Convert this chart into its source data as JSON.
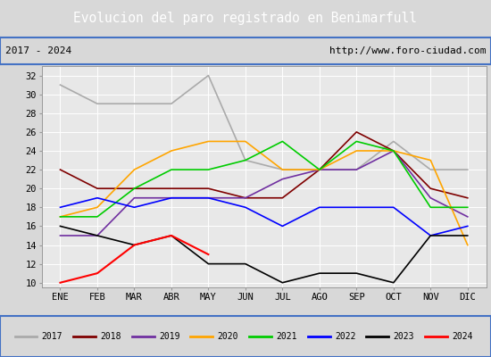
{
  "title": "Evolucion del paro registrado en Benimarfull",
  "title_bg": "#4d8fc4",
  "subtitle_left": "2017 - 2024",
  "subtitle_right": "http://www.foro-ciudad.com",
  "months": [
    "ENE",
    "FEB",
    "MAR",
    "ABR",
    "MAY",
    "JUN",
    "JUL",
    "AGO",
    "SEP",
    "OCT",
    "NOV",
    "DIC"
  ],
  "ylim": [
    9.5,
    33
  ],
  "yticks": [
    10,
    12,
    14,
    16,
    18,
    20,
    22,
    24,
    26,
    28,
    30,
    32
  ],
  "series": [
    {
      "year": "2017",
      "color": "#aaaaaa",
      "linewidth": 1.2,
      "data": [
        31,
        29,
        29,
        29,
        32,
        23,
        22,
        22,
        22,
        25,
        22,
        22
      ]
    },
    {
      "year": "2018",
      "color": "#7f0000",
      "linewidth": 1.2,
      "data": [
        22,
        20,
        20,
        20,
        20,
        19,
        19,
        22,
        26,
        24,
        20,
        19
      ]
    },
    {
      "year": "2019",
      "color": "#7030a0",
      "linewidth": 1.2,
      "data": [
        15,
        15,
        19,
        19,
        19,
        19,
        21,
        22,
        22,
        24,
        19,
        17
      ]
    },
    {
      "year": "2020",
      "color": "#ffa500",
      "linewidth": 1.2,
      "data": [
        17,
        18,
        22,
        24,
        25,
        25,
        22,
        22,
        24,
        24,
        23,
        14
      ]
    },
    {
      "year": "2021",
      "color": "#00cc00",
      "linewidth": 1.2,
      "data": [
        17,
        17,
        20,
        22,
        22,
        23,
        25,
        22,
        25,
        24,
        18,
        18
      ]
    },
    {
      "year": "2022",
      "color": "#0000ff",
      "linewidth": 1.2,
      "data": [
        18,
        19,
        18,
        19,
        19,
        18,
        16,
        18,
        18,
        18,
        15,
        16
      ]
    },
    {
      "year": "2023",
      "color": "#000000",
      "linewidth": 1.2,
      "data": [
        16,
        15,
        14,
        15,
        12,
        12,
        10,
        11,
        11,
        10,
        15,
        15
      ]
    },
    {
      "year": "2024",
      "color": "#ff0000",
      "linewidth": 1.5,
      "data": [
        10,
        11,
        14,
        15,
        13,
        null,
        null,
        null,
        null,
        null,
        null,
        null
      ]
    }
  ],
  "bg_color": "#d8d8d8",
  "plot_bg": "#e8e8e8",
  "grid_color": "#ffffff",
  "border_color": "#4472c4",
  "title_color": "#ffffff",
  "subtitle_border": "#4472c4"
}
